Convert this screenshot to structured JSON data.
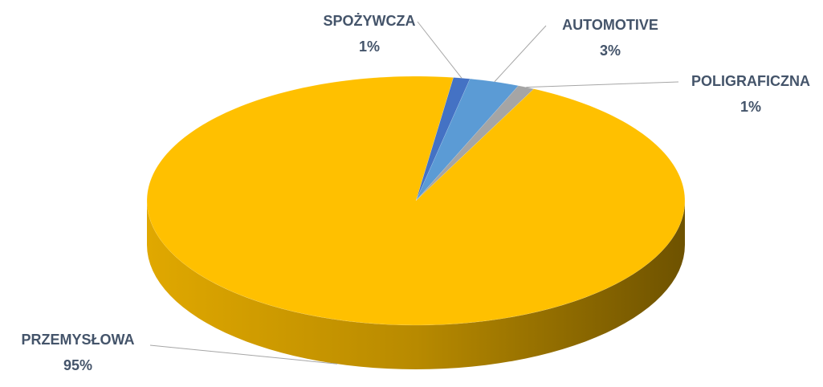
{
  "chart_data": {
    "type": "pie",
    "categories": [
      "SPOŻYWCZA",
      "AUTOMOTIVE",
      "POLIGRAFICZNA",
      "PRZEMYSŁOWA"
    ],
    "values": [
      1,
      3,
      1,
      95
    ],
    "value_labels": [
      "1%",
      "3%",
      "1%",
      "95%"
    ],
    "colors": [
      "#4472c4",
      "#5b9bd5",
      "#a5a5a5",
      "#ffc000"
    ]
  }
}
